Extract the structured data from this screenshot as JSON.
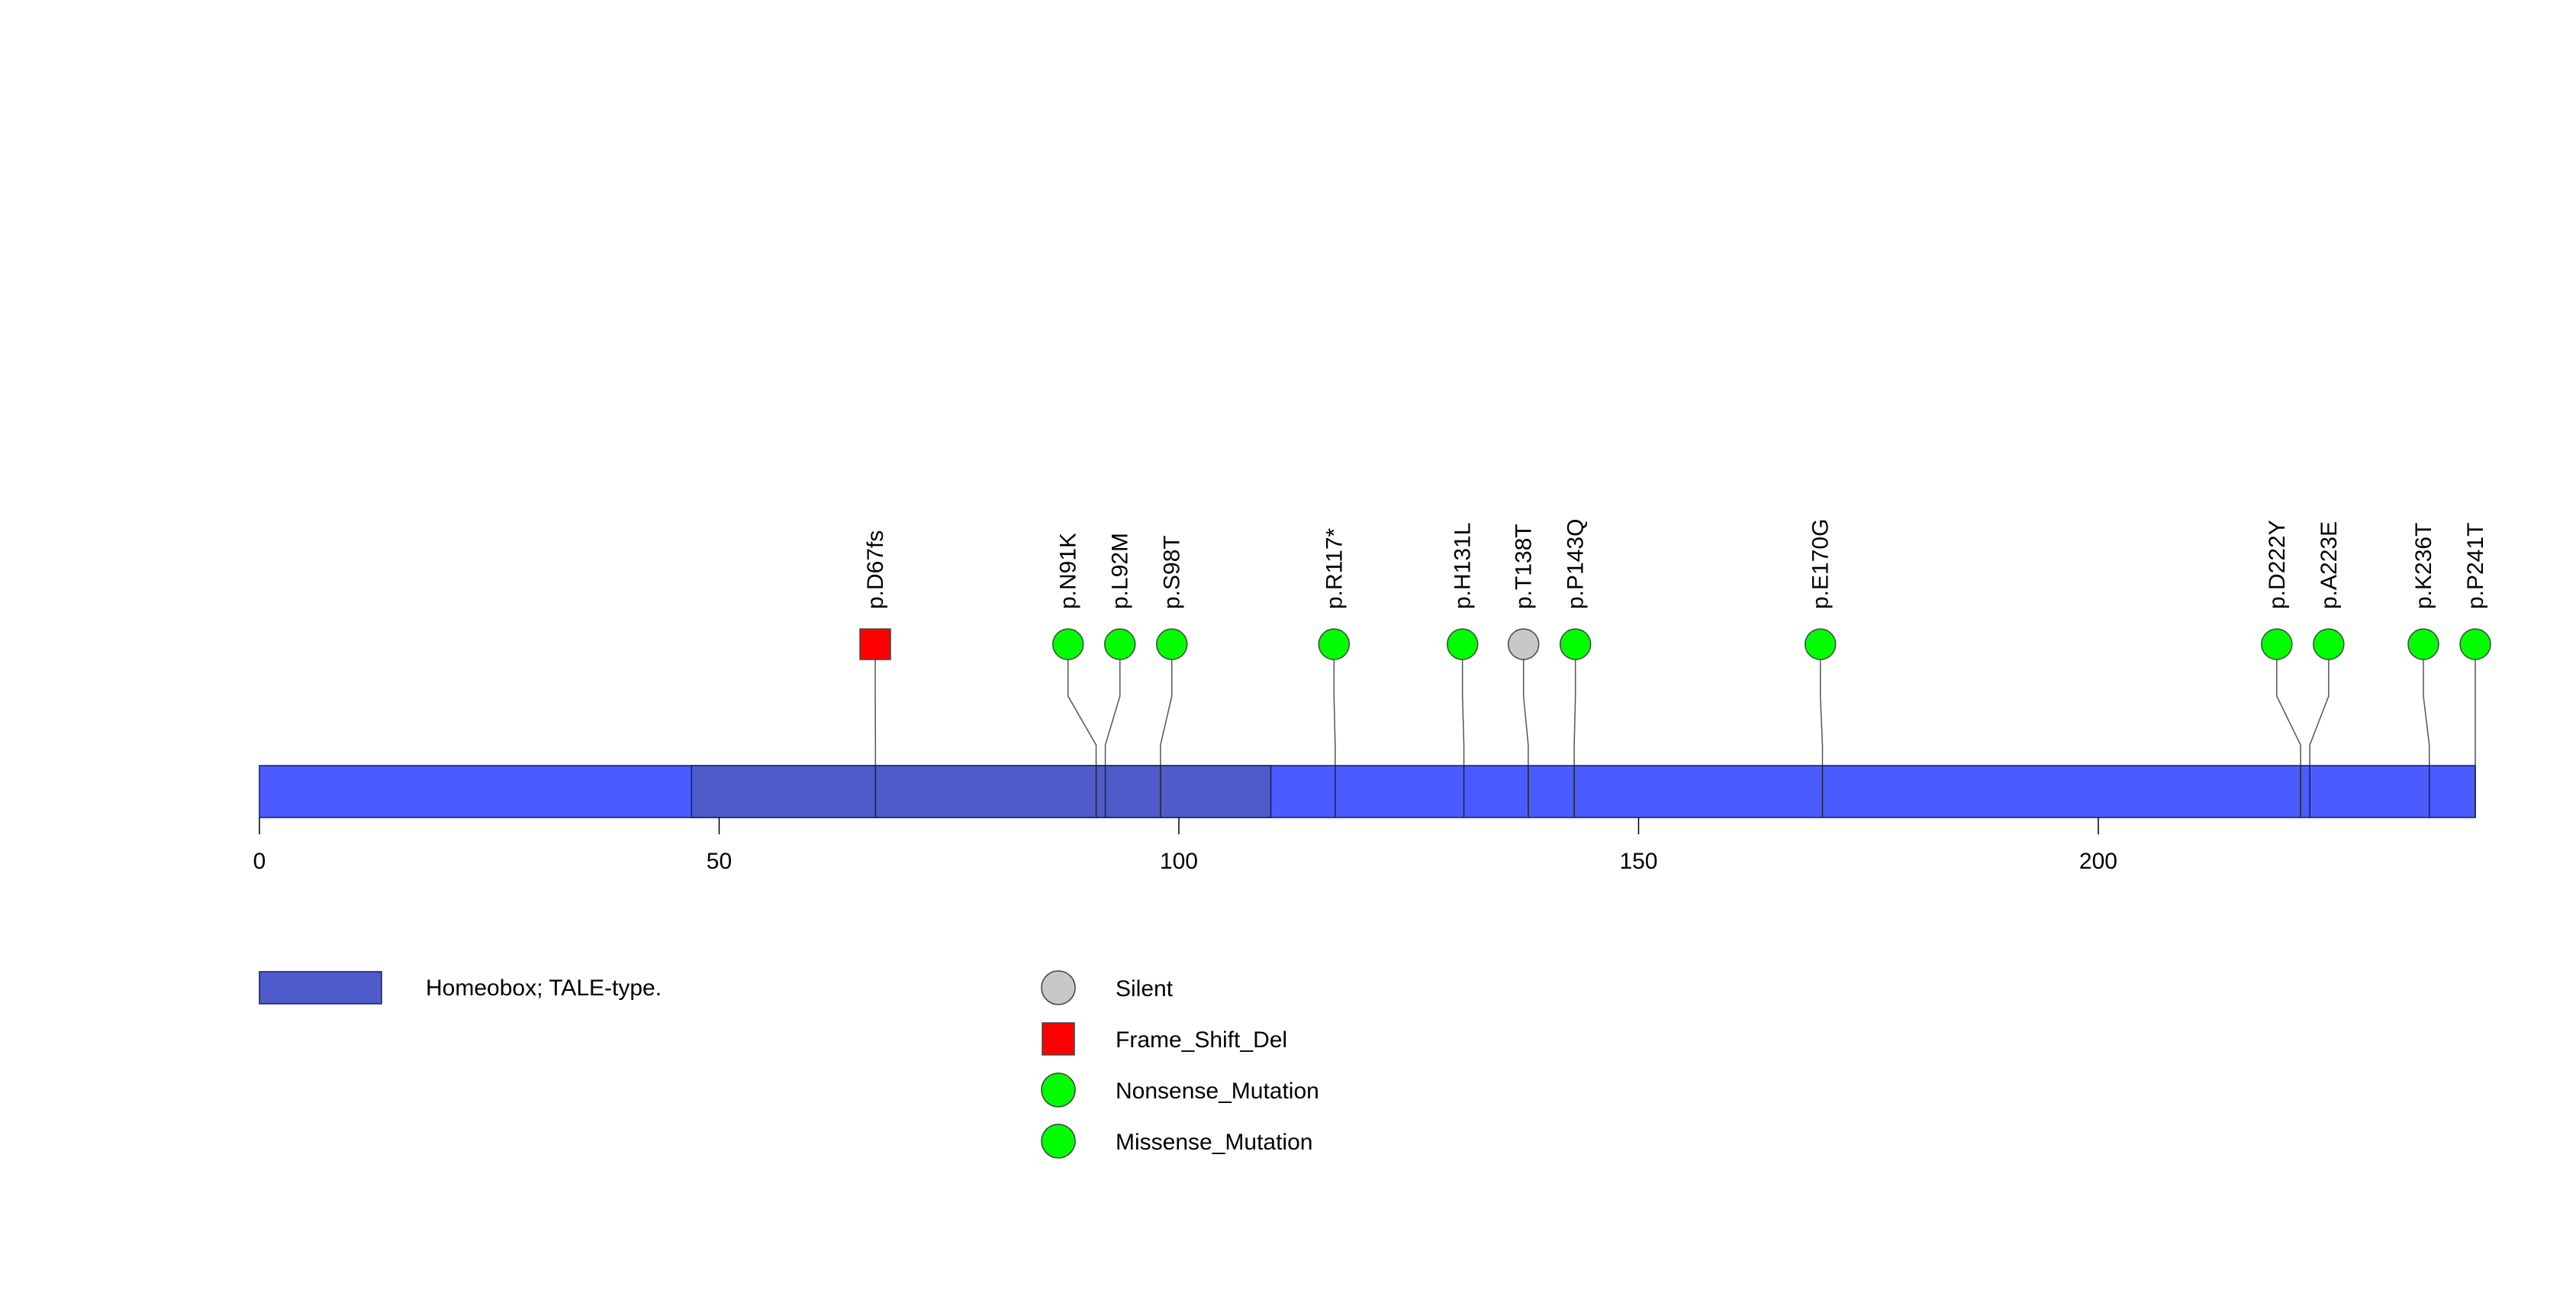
{
  "chart_data": {
    "type": "lollipop",
    "protein_length": 241,
    "axis": {
      "range": [
        0,
        241
      ],
      "ticks": [
        {
          "value": 0,
          "label": "0"
        },
        {
          "value": 50,
          "label": "50"
        },
        {
          "value": 100,
          "label": "100"
        },
        {
          "value": 150,
          "label": "150"
        },
        {
          "value": 200,
          "label": "200"
        }
      ]
    },
    "backbone_color": "#4a5cff",
    "domains": [
      {
        "name": "Homeobox; TALE-type.",
        "start": 47,
        "end": 110,
        "color": "#4f5bc9"
      }
    ],
    "mutation_types": [
      {
        "name": "Silent",
        "shape": "circle",
        "color": "#c8c8c8"
      },
      {
        "name": "Frame_Shift_Del",
        "shape": "square",
        "color": "#ff0000"
      },
      {
        "name": "Nonsense_Mutation",
        "shape": "circle",
        "color": "#00ff00"
      },
      {
        "name": "Missense_Mutation",
        "shape": "circle",
        "color": "#00ff00"
      }
    ],
    "mutations": [
      {
        "label": "p.D67fs",
        "position": 67,
        "type": "Frame_Shift_Del"
      },
      {
        "label": "p.N91K",
        "position": 91,
        "type": "Missense_Mutation"
      },
      {
        "label": "p.L92M",
        "position": 92,
        "type": "Missense_Mutation"
      },
      {
        "label": "p.S98T",
        "position": 98,
        "type": "Missense_Mutation"
      },
      {
        "label": "p.R117*",
        "position": 117,
        "type": "Nonsense_Mutation"
      },
      {
        "label": "p.H131L",
        "position": 131,
        "type": "Missense_Mutation"
      },
      {
        "label": "p.T138T",
        "position": 138,
        "type": "Silent"
      },
      {
        "label": "p.P143Q",
        "position": 143,
        "type": "Missense_Mutation"
      },
      {
        "label": "p.E170G",
        "position": 170,
        "type": "Missense_Mutation"
      },
      {
        "label": "p.D222Y",
        "position": 222,
        "type": "Missense_Mutation"
      },
      {
        "label": "p.A223E",
        "position": 223,
        "type": "Missense_Mutation"
      },
      {
        "label": "p.K236T",
        "position": 236,
        "type": "Missense_Mutation"
      },
      {
        "label": "p.P241T",
        "position": 241,
        "type": "Missense_Mutation"
      }
    ]
  }
}
